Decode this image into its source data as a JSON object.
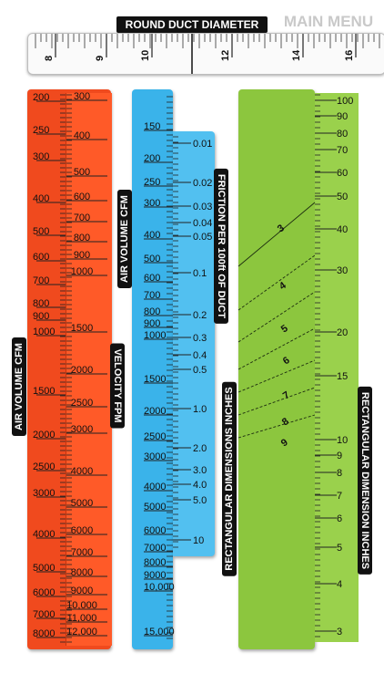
{
  "header": {
    "title": "ROUND DUCT DIAMETER",
    "main_menu": "MAIN MENU"
  },
  "round_duct_scale": [
    "8",
    "9",
    "10",
    "12",
    "14",
    "16"
  ],
  "labels": {
    "air_volume_left": "AIR VOLUME CFM",
    "velocity": "VELOCITY FPM",
    "air_volume_blue": "AIR VOLUME CFM",
    "friction": "FRICTION PER 100ft OF DUCT",
    "rect_left": "RECTANGULAR DIMENSIONS INCHES",
    "rect_right": "RECTANGULAR  DIMENSION INCHES"
  },
  "red_left_scale": [
    "200",
    "250",
    "300",
    "400",
    "500",
    "600",
    "700",
    "800",
    "900",
    "1000",
    "1500",
    "2000",
    "2500",
    "3000",
    "4000",
    "5000",
    "6000",
    "7000",
    "8000"
  ],
  "red_right_scale": [
    "300",
    "400",
    "500",
    "600",
    "700",
    "800",
    "900",
    "1000",
    "1500",
    "2000",
    "2500",
    "3000",
    "4000",
    "5000",
    "6000",
    "7000",
    "8000",
    "9000",
    "10,000",
    "11,000",
    "12,000"
  ],
  "blue_left_scale": [
    "150",
    "200",
    "250",
    "300",
    "400",
    "500",
    "600",
    "700",
    "800",
    "900",
    "1000",
    "1500",
    "2000",
    "2500",
    "3000",
    "4000",
    "5000",
    "6000",
    "7000",
    "8000",
    "9000",
    "10,000",
    "15,000"
  ],
  "blue_right_scale": [
    "0.01",
    "0.02",
    "0.03",
    "0.04",
    "0.05",
    "0.1",
    "0.2",
    "0.3",
    "0.4",
    "0.5",
    "1.0",
    "2.0",
    "3.0",
    "4.0",
    "5.0",
    "10"
  ],
  "green_diag_labels": [
    "3",
    "4",
    "5",
    "6",
    "7",
    "8",
    "9"
  ],
  "green_right_scale": [
    "100",
    "90",
    "80",
    "70",
    "60",
    "50",
    "40",
    "30",
    "20",
    "15",
    "10",
    "9",
    "8",
    "7",
    "6",
    "5",
    "4",
    "3"
  ],
  "colors": {
    "red": "#f04a1e",
    "blue": "#3ab3ea",
    "green": "#8cc63e",
    "label_bg": "#111111"
  }
}
